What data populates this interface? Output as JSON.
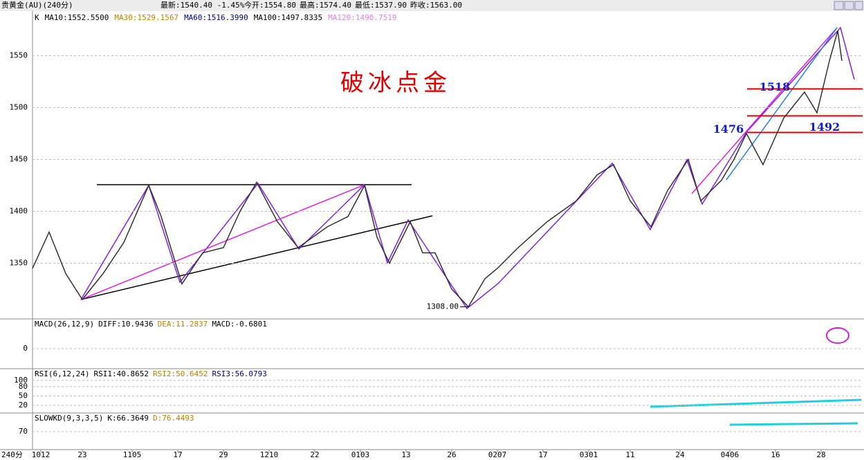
{
  "header": {
    "symbol": "贵黄金(AU)(240分)",
    "latest": "最新:1540.40 -1.45%",
    "open": "今开:1554.80",
    "high": "最高:1574.40",
    "low": "最低:1537.90",
    "prev_close": "昨收:1563.00"
  },
  "chart_data": [
    {
      "type": "line",
      "title": "破冰点金",
      "legend": [
        {
          "name": "K",
          "color": "#000000"
        },
        {
          "name": "MA10:1552.5500",
          "color": "#000000"
        },
        {
          "name": "MA30:1529.1567",
          "color": "#c08000"
        },
        {
          "name": "MA60:1516.3990",
          "color": "#000080"
        },
        {
          "name": "MA100:1497.8335",
          "color": "#000000"
        },
        {
          "name": "MA120:1490.7519",
          "color": "#e080e0"
        }
      ],
      "x": [
        0,
        4,
        8,
        12,
        17,
        22,
        28,
        31,
        36,
        41,
        46,
        50,
        54,
        59,
        64,
        71,
        76,
        80,
        83,
        86,
        91,
        94,
        97,
        101,
        105,
        109,
        112,
        117,
        124,
        131,
        136,
        140,
        144,
        149,
        153,
        158,
        161,
        166,
        169,
        172,
        176,
        181,
        186,
        189,
        192,
        194,
        195
      ],
      "series": [
        {
          "name": "K",
          "color": "#303030",
          "values": [
            1345,
            1380,
            1340,
            1315,
            1340,
            1370,
            1425,
            1395,
            1330,
            1360,
            1365,
            1400,
            1428,
            1390,
            1365,
            1385,
            1395,
            1425,
            1375,
            1350,
            1390,
            1360,
            1360,
            1325,
            1308,
            1335,
            1345,
            1365,
            1390,
            1410,
            1435,
            1445,
            1410,
            1385,
            1420,
            1450,
            1410,
            1430,
            1450,
            1475,
            1445,
            1490,
            1515,
            1495,
            1545,
            1574,
            1545
          ]
        }
      ],
      "levels": [
        1518,
        1492,
        1476
      ],
      "level_color": "#e00000",
      "low_mark": {
        "value": 1308,
        "label": "1308.00"
      },
      "low_index": 105,
      "xlim": [
        0,
        200
      ],
      "xticks": [
        {
          "value": 2,
          "label": "1012"
        },
        {
          "value": 12,
          "label": "23"
        },
        {
          "value": 24,
          "label": "1105"
        },
        {
          "value": 35,
          "label": "17"
        },
        {
          "value": 46,
          "label": "29"
        },
        {
          "value": 57,
          "label": "1210"
        },
        {
          "value": 68,
          "label": "22"
        },
        {
          "value": 79,
          "label": "0103"
        },
        {
          "value": 90,
          "label": "13"
        },
        {
          "value": 101,
          "label": "26"
        },
        {
          "value": 112,
          "label": "0207"
        },
        {
          "value": 123,
          "label": "17"
        },
        {
          "value": 134,
          "label": "0301"
        },
        {
          "value": 144,
          "label": "11"
        },
        {
          "value": 156,
          "label": "24"
        },
        {
          "value": 168,
          "label": "0406"
        },
        {
          "value": 179,
          "label": "16"
        },
        {
          "value": 190,
          "label": "28"
        }
      ],
      "x_unit": "240分",
      "ylim": [
        1297,
        1593
      ],
      "yticks": [
        1350,
        1400,
        1450,
        1500,
        1550
      ],
      "grid": true
    },
    {
      "type": "indicator",
      "name": "MACD(26,12,9)",
      "labels": [
        {
          "text": "DIFF:10.9436",
          "color": "#000000"
        },
        {
          "text": "DEA:11.2837",
          "color": "#c08000"
        },
        {
          "text": "MACD:-0.6801",
          "color": "#000000"
        }
      ],
      "ylim": [
        -40,
        60
      ],
      "yticks": [
        0
      ]
    },
    {
      "type": "indicator",
      "name": "RSI(6,12,24)",
      "labels": [
        {
          "text": "RSI1:40.8652",
          "color": "#000000"
        },
        {
          "text": "RSI2:50.6452",
          "color": "#c08000"
        },
        {
          "text": "RSI3:56.0793",
          "color": "#000080"
        }
      ],
      "ylim": [
        -2,
        135
      ],
      "yticks": [
        20,
        50,
        80,
        100
      ]
    },
    {
      "type": "indicator",
      "name": "SLOWKD(9,3,3,5)",
      "labels": [
        {
          "text": "K:66.3649",
          "color": "#000000"
        },
        {
          "text": "D:76.4493",
          "color": "#c08000"
        }
      ],
      "ylim": [
        0,
        140
      ],
      "yticks": [
        70
      ]
    }
  ]
}
